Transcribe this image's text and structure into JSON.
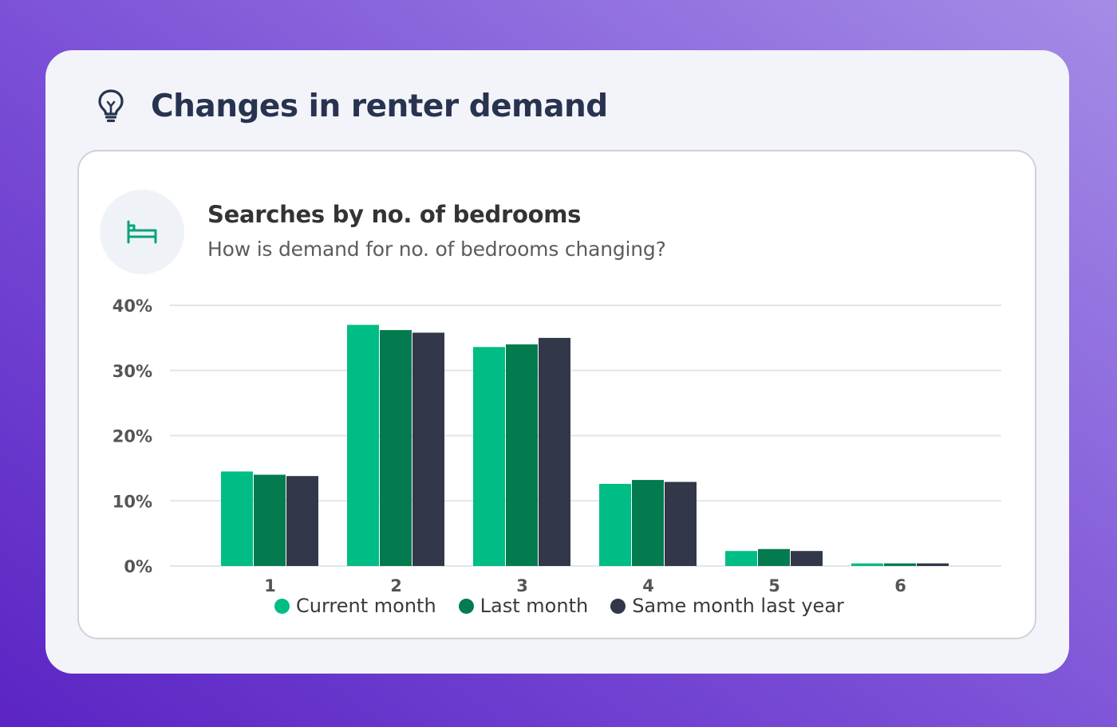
{
  "header": {
    "title": "Changes in renter demand",
    "icon": "lightbulb-icon"
  },
  "panel": {
    "icon": "bed-icon",
    "title": "Searches by no. of bedrooms",
    "subtitle": "How is demand for no. of bedrooms changing?"
  },
  "colors": {
    "current": "#00bd86",
    "last": "#037b4f",
    "last_year": "#323749",
    "accent_icon": "#0aa37a"
  },
  "chart_data": {
    "type": "bar",
    "categories": [
      "1",
      "2",
      "3",
      "4",
      "5",
      "6"
    ],
    "series": [
      {
        "name": "Current month",
        "values": [
          14.5,
          37.0,
          33.6,
          12.6,
          2.3,
          0.4
        ]
      },
      {
        "name": "Last month",
        "values": [
          14.0,
          36.2,
          34.0,
          13.2,
          2.6,
          0.4
        ]
      },
      {
        "name": "Same month last year",
        "values": [
          13.8,
          35.8,
          35.0,
          12.9,
          2.3,
          0.4
        ]
      }
    ],
    "yticks": [
      "0%",
      "10%",
      "20%",
      "30%",
      "40%"
    ],
    "ylim": [
      0,
      40
    ],
    "grid": true,
    "legend_position": "bottom"
  }
}
